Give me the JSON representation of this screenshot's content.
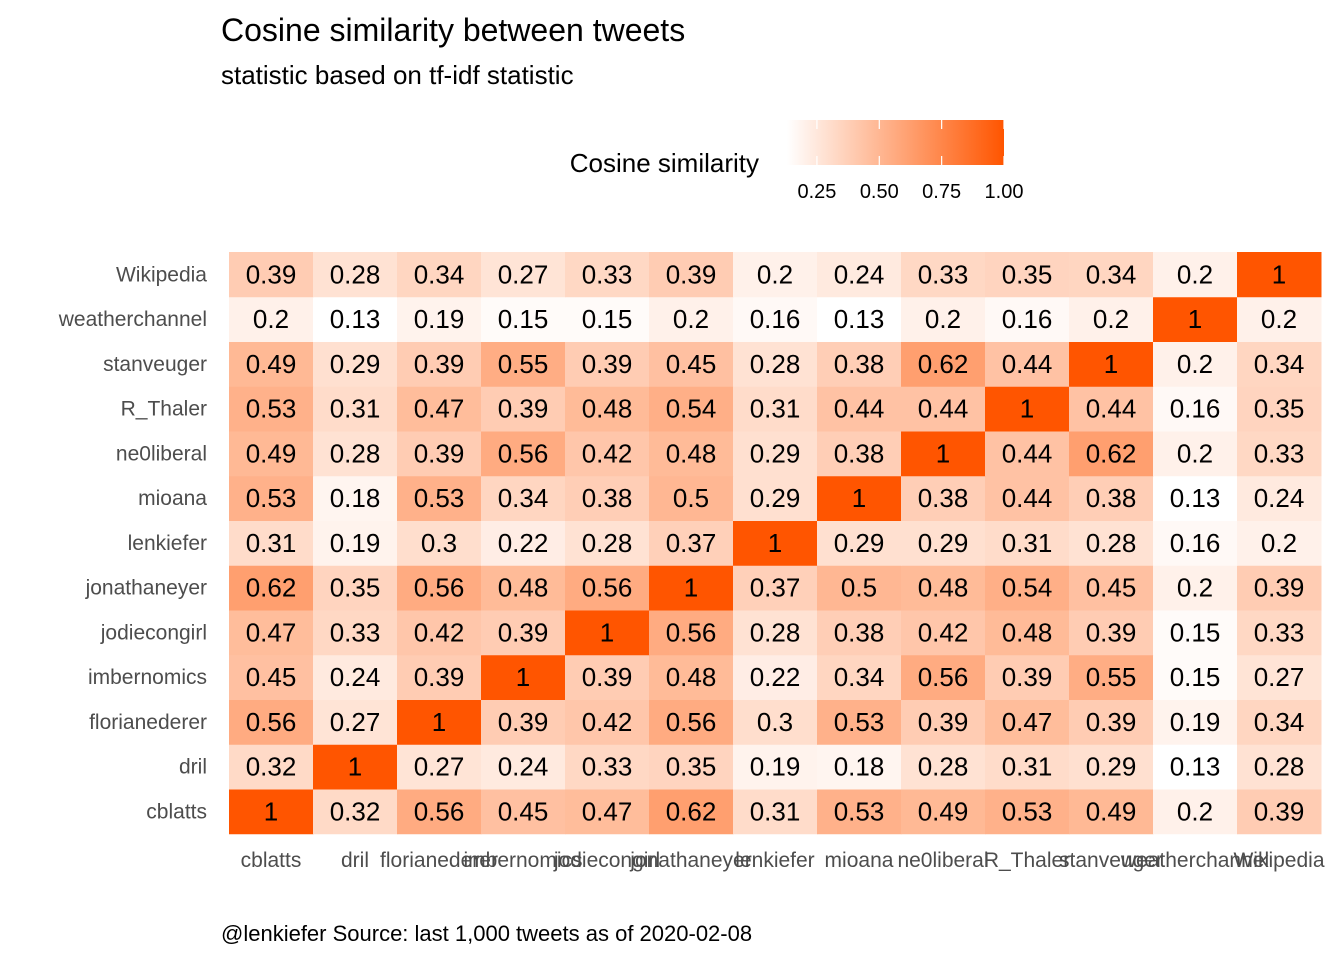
{
  "colors": {
    "low": "#ffffff",
    "high": "#ff5500",
    "text": "#000000",
    "axis_text": "#4d4d4d"
  },
  "chart_data": {
    "type": "heatmap",
    "title": "Cosine similarity between tweets",
    "subtitle": "statistic based on tf-idf statistic",
    "caption": "@lenkiefer Source: last 1,000 tweets as of 2020-02-08",
    "legend": {
      "title": "Cosine similarity",
      "position": "top",
      "ticks": [
        "0.25",
        "0.50",
        "0.75",
        "1.00"
      ],
      "tick_values": [
        0.25,
        0.5,
        0.75,
        1.0
      ],
      "range": [
        0.13,
        1.0
      ]
    },
    "x_categories": [
      "cblatts",
      "dril",
      "florianederer",
      "imbernomics",
      "jodiecongirl",
      "jonathaneyer",
      "lenkiefer",
      "mioana",
      "ne0liberal",
      "R_Thaler",
      "stanveuger",
      "weatherchannel",
      "Wikipedia"
    ],
    "y_categories": [
      "cblatts",
      "dril",
      "florianederer",
      "imbernomics",
      "jodiecongirl",
      "jonathaneyer",
      "lenkiefer",
      "mioana",
      "ne0liberal",
      "R_Thaler",
      "stanveuger",
      "weatherchannel",
      "Wikipedia"
    ],
    "values": [
      [
        1,
        0.32,
        0.56,
        0.45,
        0.47,
        0.62,
        0.31,
        0.53,
        0.49,
        0.53,
        0.49,
        0.2,
        0.39
      ],
      [
        0.32,
        1,
        0.27,
        0.24,
        0.33,
        0.35,
        0.19,
        0.18,
        0.28,
        0.31,
        0.29,
        0.13,
        0.28
      ],
      [
        0.56,
        0.27,
        1,
        0.39,
        0.42,
        0.56,
        0.3,
        0.53,
        0.39,
        0.47,
        0.39,
        0.19,
        0.34
      ],
      [
        0.45,
        0.24,
        0.39,
        1,
        0.39,
        0.48,
        0.22,
        0.34,
        0.56,
        0.39,
        0.55,
        0.15,
        0.27
      ],
      [
        0.47,
        0.33,
        0.42,
        0.39,
        1,
        0.56,
        0.28,
        0.38,
        0.42,
        0.48,
        0.39,
        0.15,
        0.33
      ],
      [
        0.62,
        0.35,
        0.56,
        0.48,
        0.56,
        1,
        0.37,
        0.5,
        0.48,
        0.54,
        0.45,
        0.2,
        0.39
      ],
      [
        0.31,
        0.19,
        0.3,
        0.22,
        0.28,
        0.37,
        1,
        0.29,
        0.29,
        0.31,
        0.28,
        0.16,
        0.2
      ],
      [
        0.53,
        0.18,
        0.53,
        0.34,
        0.38,
        0.5,
        0.29,
        1,
        0.38,
        0.44,
        0.38,
        0.13,
        0.24
      ],
      [
        0.49,
        0.28,
        0.39,
        0.56,
        0.42,
        0.48,
        0.29,
        0.38,
        1,
        0.44,
        0.62,
        0.2,
        0.33
      ],
      [
        0.53,
        0.31,
        0.47,
        0.39,
        0.48,
        0.54,
        0.31,
        0.44,
        0.44,
        1,
        0.44,
        0.16,
        0.35
      ],
      [
        0.49,
        0.29,
        0.39,
        0.55,
        0.39,
        0.45,
        0.28,
        0.38,
        0.62,
        0.44,
        1,
        0.2,
        0.34
      ],
      [
        0.2,
        0.13,
        0.19,
        0.15,
        0.15,
        0.2,
        0.16,
        0.13,
        0.2,
        0.16,
        0.2,
        1,
        0.2
      ],
      [
        0.39,
        0.28,
        0.34,
        0.27,
        0.33,
        0.39,
        0.2,
        0.24,
        0.33,
        0.35,
        0.34,
        0.2,
        1
      ]
    ],
    "grid": false
  }
}
